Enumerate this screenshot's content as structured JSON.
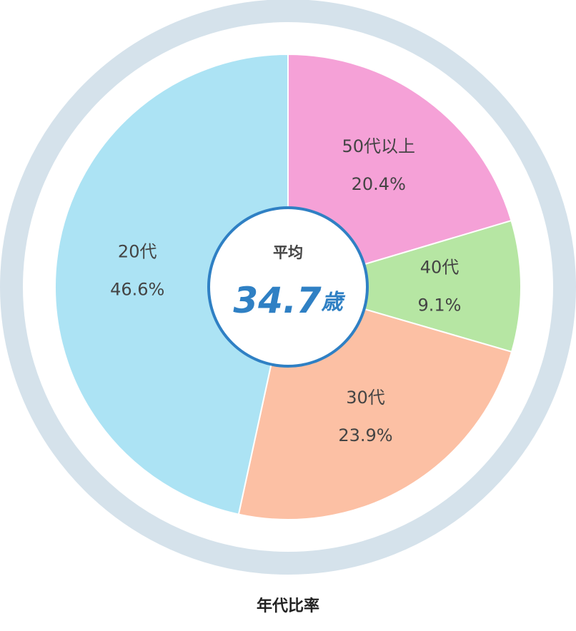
{
  "chart_data": {
    "type": "pie",
    "title": "年代比率",
    "categories": [
      "50代以上",
      "40代",
      "30代",
      "20代"
    ],
    "values": [
      20.4,
      9.1,
      23.9,
      46.6
    ],
    "value_labels": [
      "20.4%",
      "9.1%",
      "23.9%",
      "46.6%"
    ],
    "colors": [
      "#f5a1d7",
      "#b6e6a3",
      "#fcc0a4",
      "#ace3f4"
    ],
    "center_label": "平均",
    "center_value": "34.7",
    "center_unit": "歳"
  }
}
